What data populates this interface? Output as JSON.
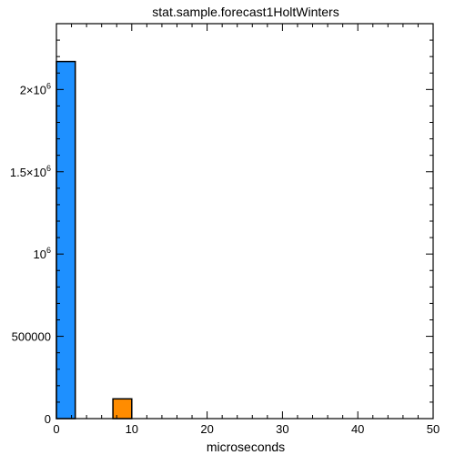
{
  "chart_data": {
    "type": "bar",
    "title": "stat.sample.forecast1HoltWinters",
    "xlabel": "microseconds",
    "ylabel": "",
    "xlim": [
      0,
      50
    ],
    "ylim": [
      0,
      2400000
    ],
    "x_ticks": [
      0,
      10,
      20,
      30,
      40,
      50
    ],
    "x_tick_labels": [
      "0",
      "10",
      "20",
      "30",
      "40",
      "50"
    ],
    "x_minor_step": 2,
    "y_ticks": [
      {
        "value": 0,
        "base": "0",
        "sup": ""
      },
      {
        "value": 500000,
        "base": "500000",
        "sup": ""
      },
      {
        "value": 1000000,
        "base": "10",
        "sup": "6"
      },
      {
        "value": 1500000,
        "base": "1.5×10",
        "sup": "6"
      },
      {
        "value": 2000000,
        "base": "2×10",
        "sup": "6"
      }
    ],
    "y_minor_step": 100000,
    "grid": false,
    "series": [
      {
        "color": "#1e90ff",
        "bars": [
          {
            "x0": 0,
            "x1": 2.5,
            "value": 2170000
          }
        ]
      },
      {
        "color": "#ff8c00",
        "bars": [
          {
            "x0": 7.5,
            "x1": 10,
            "value": 120000
          }
        ]
      }
    ]
  }
}
